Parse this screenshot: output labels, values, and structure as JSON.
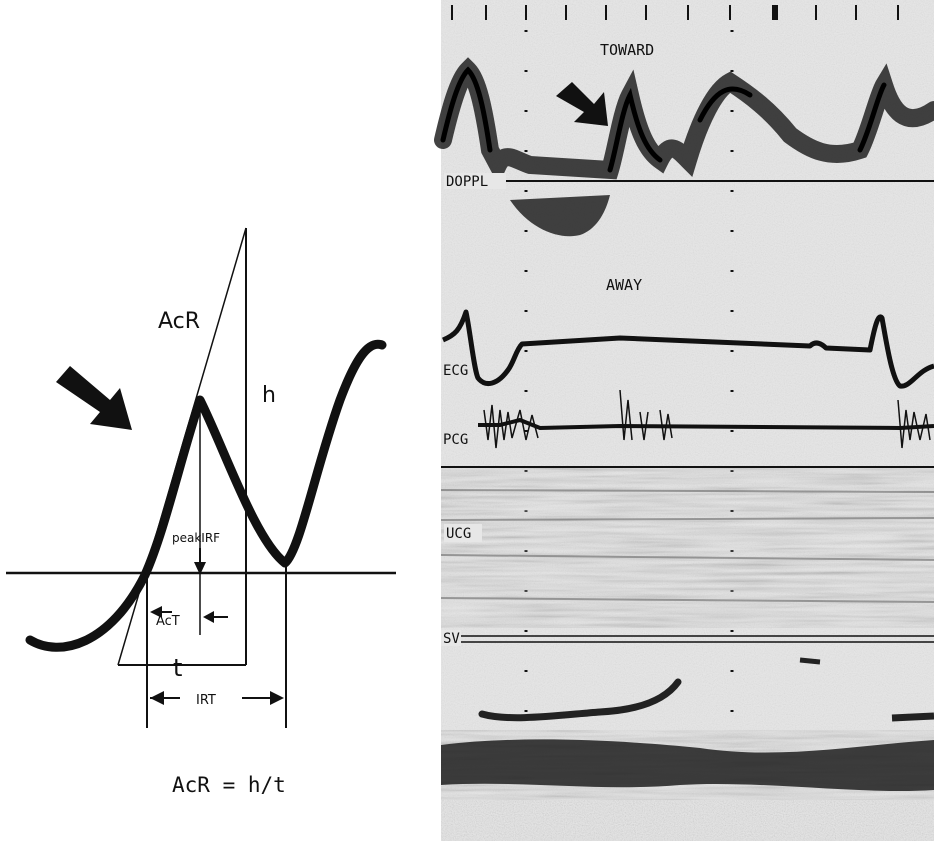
{
  "left_diagram": {
    "acr_label": "AcR",
    "h_label": "h",
    "peak_label": "peakIRF",
    "act_label": "AcT",
    "t_label": "t",
    "irt_label": "IRT",
    "formula": "AcR = h/t"
  },
  "right_recording": {
    "toward_label": "TOWARD",
    "away_label": "AWAY",
    "channels": [
      "DOPPL",
      "ECG",
      "PCG",
      "UCG",
      "SV"
    ]
  },
  "colors": {
    "ink": "#111111",
    "paper": "#ffffff",
    "recording_bg": "#e6e6e6"
  }
}
